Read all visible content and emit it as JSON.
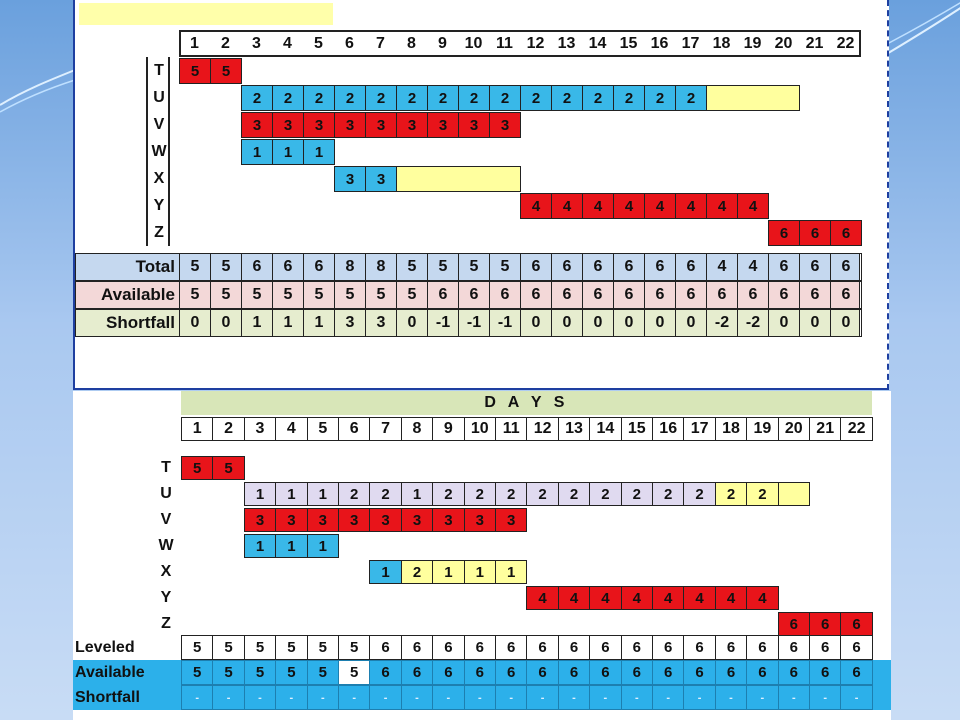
{
  "top": {
    "days": [
      "1",
      "2",
      "3",
      "4",
      "5",
      "6",
      "7",
      "8",
      "9",
      "10",
      "11",
      "12",
      "13",
      "14",
      "15",
      "16",
      "17",
      "18",
      "19",
      "20",
      "21",
      "22"
    ],
    "activities": [
      {
        "label": "T",
        "start": 1,
        "values": [
          "5",
          "5"
        ],
        "color": "red",
        "tail_yellow": 0
      },
      {
        "label": "U",
        "start": 3,
        "values": [
          "2",
          "2",
          "2",
          "2",
          "2",
          "2",
          "2",
          "2",
          "2",
          "2",
          "2",
          "2",
          "2",
          "2",
          "2"
        ],
        "color": "blue",
        "tail_yellow": 3
      },
      {
        "label": "V",
        "start": 3,
        "values": [
          "3",
          "3",
          "3",
          "3",
          "3",
          "3",
          "3",
          "3",
          "3"
        ],
        "color": "red",
        "tail_yellow": 0
      },
      {
        "label": "W",
        "start": 3,
        "values": [
          "1",
          "1",
          "1"
        ],
        "color": "blue",
        "tail_yellow": 0
      },
      {
        "label": "X",
        "start": 6,
        "values": [
          "3",
          "3"
        ],
        "color": "blue",
        "tail_yellow": 4
      },
      {
        "label": "Y",
        "start": 12,
        "values": [
          "4",
          "4",
          "4",
          "4",
          "4",
          "4",
          "4",
          "4"
        ],
        "color": "red",
        "tail_yellow": 0
      },
      {
        "label": "Z",
        "start": 20,
        "values": [
          "6",
          "6",
          "6"
        ],
        "color": "red",
        "tail_yellow": 0
      }
    ],
    "summary": [
      {
        "label": "Total",
        "values": [
          "5",
          "5",
          "6",
          "6",
          "6",
          "8",
          "8",
          "5",
          "5",
          "5",
          "5",
          "6",
          "6",
          "6",
          "6",
          "6",
          "6",
          "4",
          "4",
          "6",
          "6",
          "6"
        ]
      },
      {
        "label": "Available",
        "values": [
          "5",
          "5",
          "5",
          "5",
          "5",
          "5",
          "5",
          "5",
          "6",
          "6",
          "6",
          "6",
          "6",
          "6",
          "6",
          "6",
          "6",
          "6",
          "6",
          "6",
          "6",
          "6"
        ]
      },
      {
        "label": "Shortfall",
        "values": [
          "0",
          "0",
          "1",
          "1",
          "1",
          "3",
          "3",
          "0",
          "-1",
          "-1",
          "-1",
          "0",
          "0",
          "0",
          "0",
          "0",
          "0",
          "-2",
          "-2",
          "0",
          "0",
          "0"
        ]
      }
    ]
  },
  "bottom": {
    "header": "D A Y S",
    "days": [
      "1",
      "2",
      "3",
      "4",
      "5",
      "6",
      "7",
      "8",
      "9",
      "10",
      "11",
      "12",
      "13",
      "14",
      "15",
      "16",
      "17",
      "18",
      "19",
      "20",
      "21",
      "22"
    ],
    "activities": [
      {
        "label": "T",
        "start": 1,
        "values": [
          "5",
          "5"
        ],
        "color": "red",
        "colors": []
      },
      {
        "label": "U",
        "start": 3,
        "values": [
          "1",
          "1",
          "1",
          "2",
          "2",
          "1",
          "2",
          "2",
          "2",
          "2",
          "2",
          "2",
          "2",
          "2",
          "2",
          "2",
          "2",
          ""
        ],
        "color": "lavender",
        "colors": [
          "",
          "",
          "",
          "",
          "",
          "",
          "",
          "",
          "",
          "",
          "",
          "",
          "",
          "",
          "",
          "y",
          "y",
          "y"
        ]
      },
      {
        "label": "V",
        "start": 3,
        "values": [
          "3",
          "3",
          "3",
          "3",
          "3",
          "3",
          "3",
          "3",
          "3"
        ],
        "color": "red",
        "colors": []
      },
      {
        "label": "W",
        "start": 3,
        "values": [
          "1",
          "1",
          "1"
        ],
        "color": "blue",
        "colors": []
      },
      {
        "label": "X",
        "start": 7,
        "values": [
          "1",
          "2",
          "1",
          "1",
          "1"
        ],
        "color": "yellow",
        "colors": [
          "b",
          "",
          "",
          "",
          ""
        ]
      },
      {
        "label": "Y",
        "start": 12,
        "values": [
          "4",
          "4",
          "4",
          "4",
          "4",
          "4",
          "4",
          "4"
        ],
        "color": "red",
        "colors": []
      },
      {
        "label": "Z",
        "start": 20,
        "values": [
          "6",
          "6",
          "6"
        ],
        "color": "red",
        "colors": []
      }
    ],
    "summary": [
      {
        "label": "Leveled",
        "values": [
          "5",
          "5",
          "5",
          "5",
          "5",
          "5",
          "6",
          "6",
          "6",
          "6",
          "6",
          "6",
          "6",
          "6",
          "6",
          "6",
          "6",
          "6",
          "6",
          "6",
          "6",
          "6"
        ]
      },
      {
        "label": "Available",
        "values": [
          "5",
          "5",
          "5",
          "5",
          "5",
          "5",
          "6",
          "6",
          "6",
          "6",
          "6",
          "6",
          "6",
          "6",
          "6",
          "6",
          "6",
          "6",
          "6",
          "6",
          "6",
          "6"
        ]
      },
      {
        "label": "Shortfall",
        "values": [
          "-",
          "-",
          "-",
          "-",
          "-",
          "-",
          "-",
          "-",
          "-",
          "-",
          "-",
          "-",
          "-",
          "-",
          "-",
          "-",
          "-",
          "-",
          "-",
          "-",
          "-",
          "-"
        ]
      }
    ]
  },
  "colors": {
    "red": "#e8141a",
    "blue": "#39b8e8",
    "yellow": "#ffff9e",
    "lavender": "#e0daf0",
    "header_green": "#d8e6b8",
    "total_band": "#c5d8ef",
    "available_band": "#f3d8d8",
    "shortfall_band": "#e6edcf",
    "leveled_band": "#ffffff",
    "available2_band": "#2cb0ea",
    "shortfall2_band": "#2cb0ea"
  }
}
